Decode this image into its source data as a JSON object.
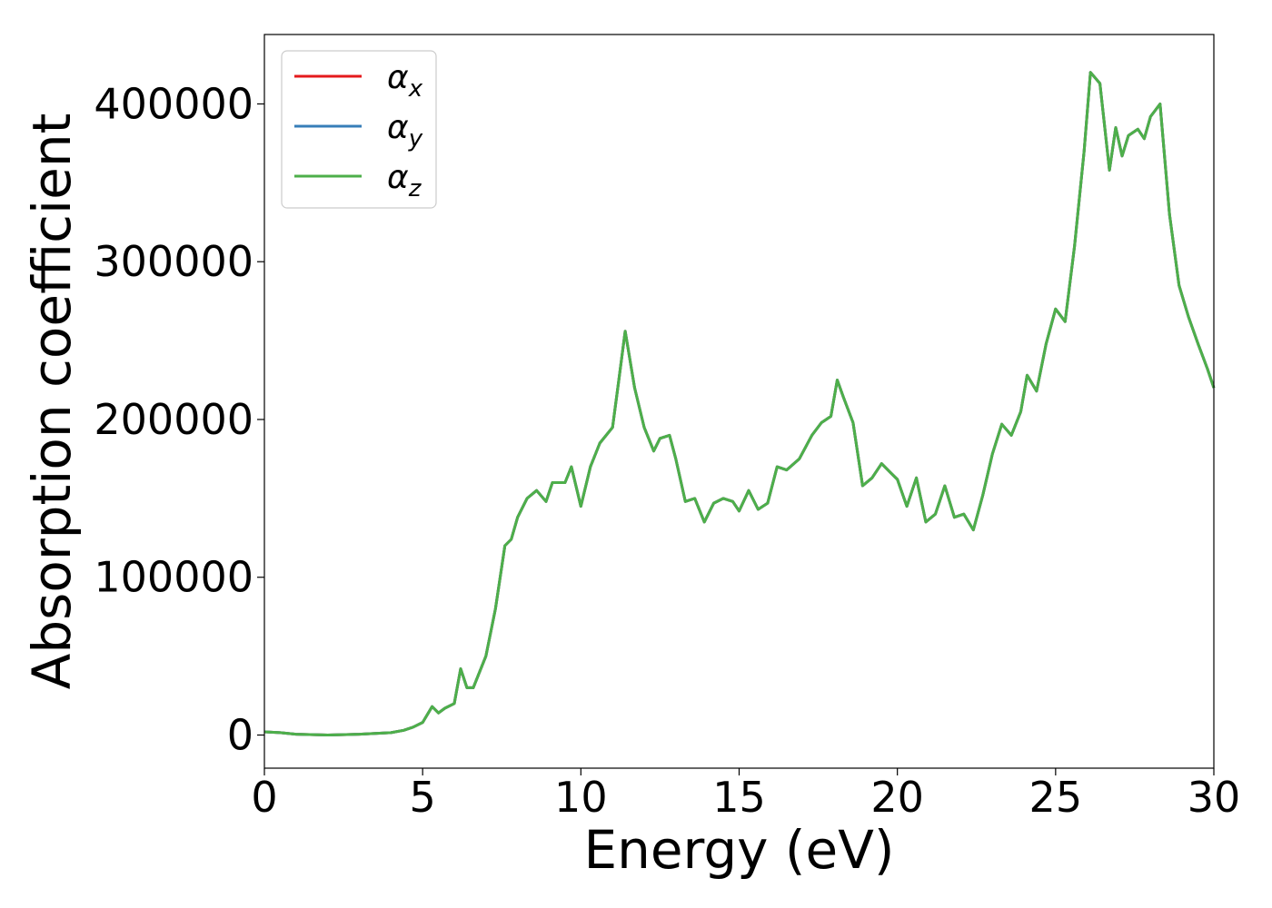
{
  "chart_data": {
    "type": "line",
    "title": "",
    "xlabel": "Energy (eV)",
    "ylabel": "Absorption coefficient",
    "xlim": [
      0,
      30
    ],
    "ylim": [
      -21000,
      444000
    ],
    "x_ticks": [
      0,
      5,
      10,
      15,
      20,
      25,
      30
    ],
    "y_ticks": [
      0,
      100000,
      200000,
      300000,
      400000
    ],
    "x_tick_labels": [
      "0",
      "5",
      "10",
      "15",
      "20",
      "25",
      "30"
    ],
    "y_tick_labels": [
      "0",
      "100000",
      "200000",
      "300000",
      "400000"
    ],
    "grid": false,
    "legend_position": "upper-left",
    "x": [
      0,
      0.5,
      1,
      2,
      3,
      4,
      4.4,
      4.7,
      5.0,
      5.3,
      5.5,
      5.7,
      6.0,
      6.2,
      6.4,
      6.6,
      7.0,
      7.3,
      7.6,
      7.8,
      8.0,
      8.3,
      8.6,
      8.9,
      9.1,
      9.5,
      9.7,
      10.0,
      10.3,
      10.6,
      11.0,
      11.2,
      11.4,
      11.7,
      12.0,
      12.3,
      12.5,
      12.8,
      13.0,
      13.3,
      13.6,
      13.9,
      14.2,
      14.5,
      14.8,
      15.0,
      15.3,
      15.6,
      15.9,
      16.2,
      16.5,
      16.9,
      17.3,
      17.6,
      17.9,
      18.1,
      18.3,
      18.6,
      18.9,
      19.2,
      19.5,
      19.8,
      20.0,
      20.3,
      20.6,
      20.9,
      21.2,
      21.5,
      21.8,
      22.1,
      22.4,
      22.7,
      23.0,
      23.3,
      23.6,
      23.9,
      24.1,
      24.4,
      24.7,
      25.0,
      25.3,
      25.6,
      25.9,
      26.1,
      26.4,
      26.7,
      26.9,
      27.1,
      27.3,
      27.6,
      27.8,
      28.0,
      28.3,
      28.6,
      28.9,
      29.2,
      29.5,
      29.8,
      30.0
    ],
    "series": [
      {
        "name": "α_x",
        "color": "#e41a1c",
        "values": [
          2000,
          1500,
          500,
          0,
          500,
          1500,
          3000,
          5000,
          8000,
          18000,
          14000,
          17000,
          20000,
          42000,
          30000,
          30000,
          50000,
          80000,
          120000,
          124000,
          138000,
          150000,
          155000,
          148000,
          160000,
          160000,
          170000,
          145000,
          170000,
          185000,
          195000,
          225000,
          256000,
          220000,
          195000,
          180000,
          188000,
          190000,
          175000,
          148000,
          150000,
          135000,
          147000,
          150000,
          148000,
          142000,
          155000,
          143000,
          147000,
          170000,
          168000,
          175000,
          190000,
          198000,
          202000,
          225000,
          214000,
          198000,
          158000,
          163000,
          172000,
          166000,
          162000,
          145000,
          163000,
          135000,
          140000,
          158000,
          138000,
          140000,
          130000,
          152000,
          178000,
          197000,
          190000,
          205000,
          228000,
          218000,
          248000,
          270000,
          262000,
          310000,
          370000,
          420000,
          413000,
          358000,
          385000,
          367000,
          380000,
          384000,
          378000,
          392000,
          400000,
          330000,
          285000,
          265000,
          248000,
          232000,
          220000
        ]
      },
      {
        "name": "α_y",
        "color": "#377eb8",
        "values": [
          2000,
          1500,
          500,
          0,
          500,
          1500,
          3000,
          5000,
          8000,
          18000,
          14000,
          17000,
          20000,
          42000,
          30000,
          30000,
          50000,
          80000,
          120000,
          124000,
          138000,
          150000,
          155000,
          148000,
          160000,
          160000,
          170000,
          145000,
          170000,
          185000,
          195000,
          225000,
          256000,
          220000,
          195000,
          180000,
          188000,
          190000,
          175000,
          148000,
          150000,
          135000,
          147000,
          150000,
          148000,
          142000,
          155000,
          143000,
          147000,
          170000,
          168000,
          175000,
          190000,
          198000,
          202000,
          225000,
          214000,
          198000,
          158000,
          163000,
          172000,
          166000,
          162000,
          145000,
          163000,
          135000,
          140000,
          158000,
          138000,
          140000,
          130000,
          152000,
          178000,
          197000,
          190000,
          205000,
          228000,
          218000,
          248000,
          270000,
          262000,
          310000,
          370000,
          420000,
          413000,
          358000,
          385000,
          367000,
          380000,
          384000,
          378000,
          392000,
          400000,
          330000,
          285000,
          265000,
          248000,
          232000,
          220000
        ]
      },
      {
        "name": "α_z",
        "color": "#4daf4a",
        "values": [
          2000,
          1500,
          500,
          0,
          500,
          1500,
          3000,
          5000,
          8000,
          18000,
          14000,
          17000,
          20000,
          42000,
          30000,
          30000,
          50000,
          80000,
          120000,
          124000,
          138000,
          150000,
          155000,
          148000,
          160000,
          160000,
          170000,
          145000,
          170000,
          185000,
          195000,
          225000,
          256000,
          220000,
          195000,
          180000,
          188000,
          190000,
          175000,
          148000,
          150000,
          135000,
          147000,
          150000,
          148000,
          142000,
          155000,
          143000,
          147000,
          170000,
          168000,
          175000,
          190000,
          198000,
          202000,
          225000,
          214000,
          198000,
          158000,
          163000,
          172000,
          166000,
          162000,
          145000,
          163000,
          135000,
          140000,
          158000,
          138000,
          140000,
          130000,
          152000,
          178000,
          197000,
          190000,
          205000,
          228000,
          218000,
          248000,
          270000,
          262000,
          310000,
          370000,
          420000,
          413000,
          358000,
          385000,
          367000,
          380000,
          384000,
          378000,
          392000,
          400000,
          330000,
          285000,
          265000,
          248000,
          232000,
          220000
        ]
      }
    ],
    "legend": [
      {
        "symbol": "α",
        "sub": "x",
        "color": "#e41a1c"
      },
      {
        "symbol": "α",
        "sub": "y",
        "color": "#377eb8"
      },
      {
        "symbol": "α",
        "sub": "z",
        "color": "#4daf4a"
      }
    ]
  }
}
